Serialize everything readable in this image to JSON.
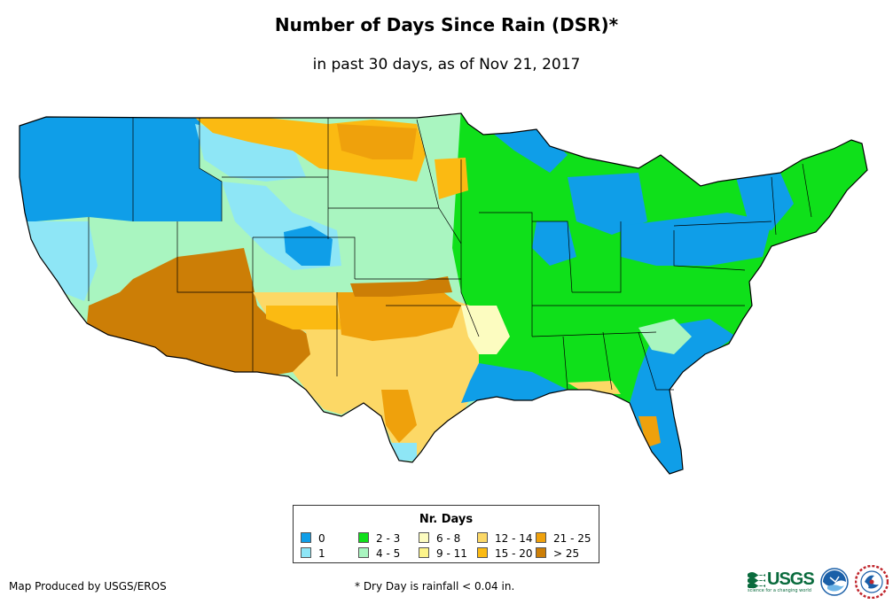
{
  "title": "Number of Days Since Rain (DSR)*",
  "subtitle": "in past 30 days, as of Nov 21, 2017",
  "legend": {
    "title": "Nr. Days",
    "items": [
      {
        "label": "0",
        "color": "#0f9ee8"
      },
      {
        "label": "1",
        "color": "#8ee6f6"
      },
      {
        "label": "2 - 3",
        "color": "#0fe01a"
      },
      {
        "label": "4 - 5",
        "color": "#a9f5c0"
      },
      {
        "label": "6 - 8",
        "color": "#fcfcc0"
      },
      {
        "label": "9 - 11",
        "color": "#fdf48a"
      },
      {
        "label": "12 - 14",
        "color": "#fcd866"
      },
      {
        "label": "15 - 20",
        "color": "#fbba12"
      },
      {
        "label": "21 - 25",
        "color": "#efa10c"
      },
      {
        "label": "> 25",
        "color": "#cc7e06"
      }
    ]
  },
  "credit": "Map Produced by USGS/EROS",
  "footnote": "* Dry Day is rainfall < 0.04 in.",
  "logos": {
    "usgs": "USGS",
    "usgs_tagline": "science for a changing world"
  },
  "map": {
    "regions": [
      {
        "name": "pacific-northwest",
        "category": "0"
      },
      {
        "name": "idaho-western-montana",
        "category": "0"
      },
      {
        "name": "northern-california-coast",
        "category": "1"
      },
      {
        "name": "great-basin",
        "category": "4 - 5"
      },
      {
        "name": "southern-california-arizona",
        "category": "> 25"
      },
      {
        "name": "new-mexico",
        "category": "12 - 14"
      },
      {
        "name": "colorado-rockies",
        "category": "1"
      },
      {
        "name": "central-plains",
        "category": "4 - 5"
      },
      {
        "name": "northern-plains",
        "category": "15 - 20"
      },
      {
        "name": "texas",
        "category": "12 - 14"
      },
      {
        "name": "gulf-coast",
        "category": "0"
      },
      {
        "name": "midwest-southeast",
        "category": "2 - 3"
      },
      {
        "name": "great-lakes",
        "category": "0"
      },
      {
        "name": "northeast",
        "category": "2 - 3"
      },
      {
        "name": "florida",
        "category": "0"
      }
    ]
  }
}
